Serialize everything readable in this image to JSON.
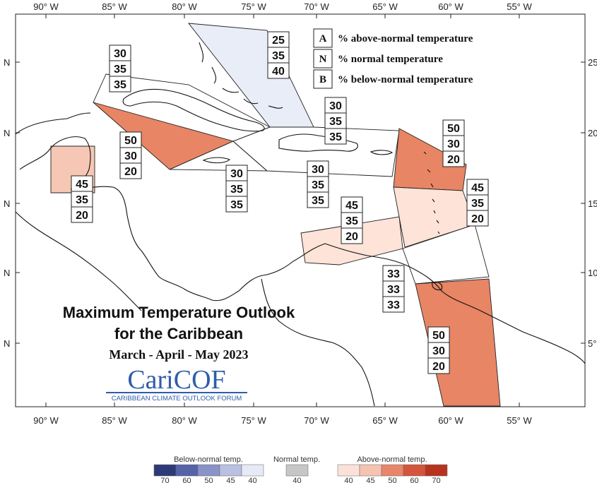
{
  "map": {
    "x_ticks": [
      "90° W",
      "85° W",
      "80° W",
      "75° W",
      "70° W",
      "65° W",
      "60° W",
      "55° W"
    ],
    "y_ticks": [
      "25",
      "20",
      "15",
      "10",
      "5°"
    ],
    "y_prefix": "N",
    "colors": {
      "above_40": "#fde3d8",
      "above_45": "#f6c7b4",
      "above_50": "#e88565",
      "normal": "#c8c8c8",
      "below_40": "#e9edf8",
      "outline": "#222222"
    }
  },
  "key": {
    "rows": [
      {
        "letter": "A",
        "text": "% above-normal temperature"
      },
      {
        "letter": "N",
        "text": "% normal temperature"
      },
      {
        "letter": "B",
        "text": "% below-normal temperature"
      }
    ]
  },
  "zones": [
    {
      "name": "bahamas",
      "values": [
        "25",
        "35",
        "40"
      ]
    },
    {
      "name": "cuba",
      "values": [
        "30",
        "35",
        "35"
      ]
    },
    {
      "name": "western-caribbean",
      "values": [
        "50",
        "30",
        "20"
      ]
    },
    {
      "name": "belize",
      "values": [
        "45",
        "35",
        "20"
      ]
    },
    {
      "name": "jamaica",
      "values": [
        "30",
        "35",
        "35"
      ]
    },
    {
      "name": "hispaniola",
      "values": [
        "30",
        "35",
        "35"
      ]
    },
    {
      "name": "puerto-rico",
      "values": [
        "30",
        "35",
        "35"
      ]
    },
    {
      "name": "leeward-islands",
      "values": [
        "50",
        "30",
        "20"
      ]
    },
    {
      "name": "windward-islands",
      "values": [
        "45",
        "35",
        "20"
      ]
    },
    {
      "name": "abc-islands",
      "values": [
        "45",
        "35",
        "20"
      ]
    },
    {
      "name": "trinidad",
      "values": [
        "33",
        "33",
        "33"
      ]
    },
    {
      "name": "guianas",
      "values": [
        "50",
        "30",
        "20"
      ]
    }
  ],
  "title": {
    "line1": "Maximum Temperature Outlook",
    "line2": "for the Caribbean",
    "season": "March - April - May 2023"
  },
  "logo": {
    "name": "CariCOF",
    "subtitle": "CARIBBEAN CLIMATE OUTLOOK FORUM"
  },
  "scale": {
    "below": {
      "label": "Below-normal temp.",
      "ticks": [
        "70",
        "60",
        "50",
        "45",
        "40"
      ],
      "colors": [
        "#2c3a78",
        "#5563a8",
        "#8a93c8",
        "#b9c0e2",
        "#e6eaf6"
      ]
    },
    "normal": {
      "label": "Normal temp.",
      "ticks": [
        "40"
      ],
      "colors": [
        "#c6c6c6"
      ]
    },
    "above": {
      "label": "Above-normal temp.",
      "ticks": [
        "40",
        "45",
        "50",
        "60",
        "70"
      ],
      "colors": [
        "#fbe2d9",
        "#f5c3b0",
        "#e8866a",
        "#d4553b",
        "#b8331e"
      ]
    }
  }
}
